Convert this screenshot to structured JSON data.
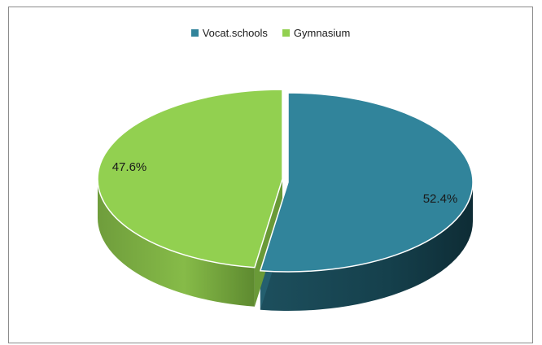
{
  "chart_data": {
    "type": "pie",
    "legend": "top-center",
    "slices": [
      {
        "name": "Vocat.schools",
        "value": 52.4,
        "label": "52.4%",
        "color": "#31849b"
      },
      {
        "name": "Gymnasium",
        "value": 47.6,
        "label": "47.6%",
        "color": "#92d050"
      }
    ]
  }
}
